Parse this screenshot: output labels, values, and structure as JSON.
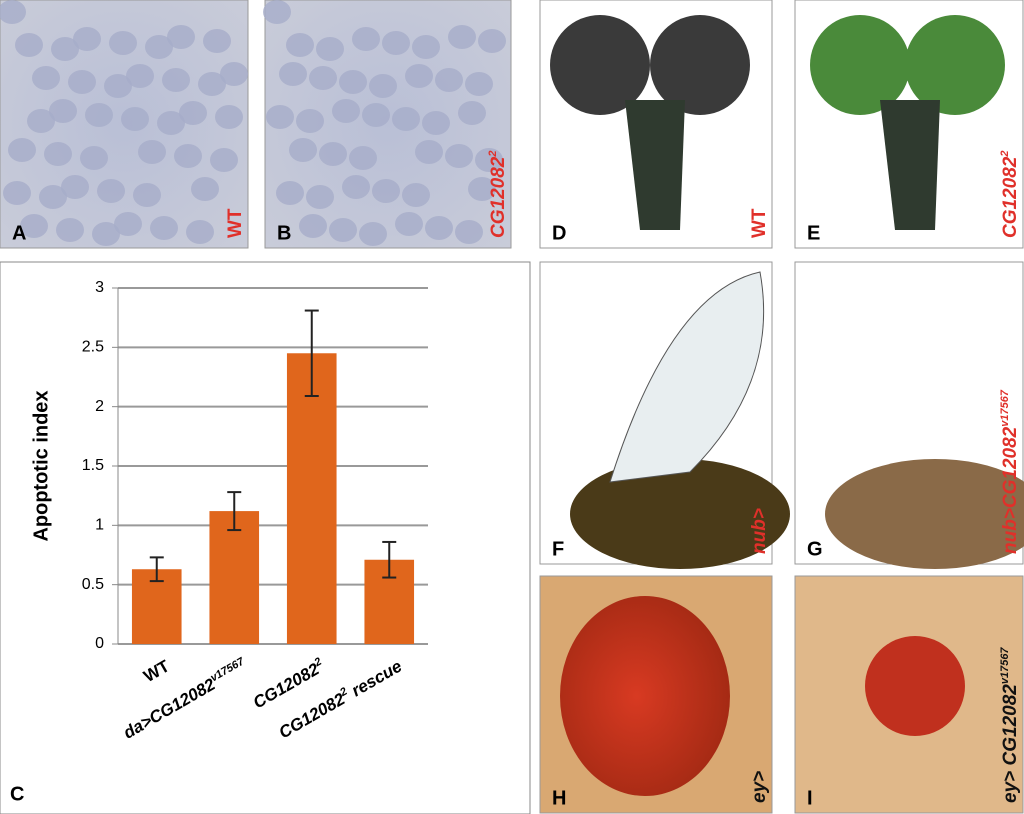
{
  "panels": [
    {
      "letter": "A",
      "label": "WT",
      "label_color": "#e0302a"
    },
    {
      "letter": "B",
      "label": "CG12082",
      "label_superscript": "2",
      "label_color": "#e0302a"
    },
    {
      "letter": "D",
      "label": "WT",
      "label_color": "#e0302a"
    },
    {
      "letter": "E",
      "label": "CG12082",
      "label_superscript": "2",
      "label_color": "#e0302a"
    },
    {
      "letter": "F",
      "label": "nub>",
      "label_color": "#e0302a"
    },
    {
      "letter": "G",
      "label": "nub>CG12082",
      "label_superscript": "v17567",
      "label_color": "#e0302a"
    },
    {
      "letter": "H",
      "label": "ey>",
      "label_color": "#111111"
    },
    {
      "letter": "I",
      "label": "ey> CG12082",
      "label_superscript": "v17567",
      "label_color": "#111111"
    }
  ],
  "chart_panel_letter": "C",
  "chart_data": {
    "type": "bar",
    "y_label": "Apoptotic index",
    "categories": [
      "WT",
      "da>CG12082",
      "CG12082",
      "CG12082"
    ],
    "category_superscripts": [
      null,
      "v17567",
      "2",
      "2"
    ],
    "category_suffixes": [
      null,
      null,
      null,
      "rescue"
    ],
    "values": [
      0.63,
      1.12,
      2.45,
      0.71
    ],
    "errors": [
      0.1,
      0.16,
      0.36,
      0.15
    ],
    "color": "#e0661c",
    "ylim": [
      0,
      3
    ],
    "yticks": [
      0,
      0.5,
      1,
      1.5,
      2,
      2.5,
      3
    ],
    "grid": true
  }
}
